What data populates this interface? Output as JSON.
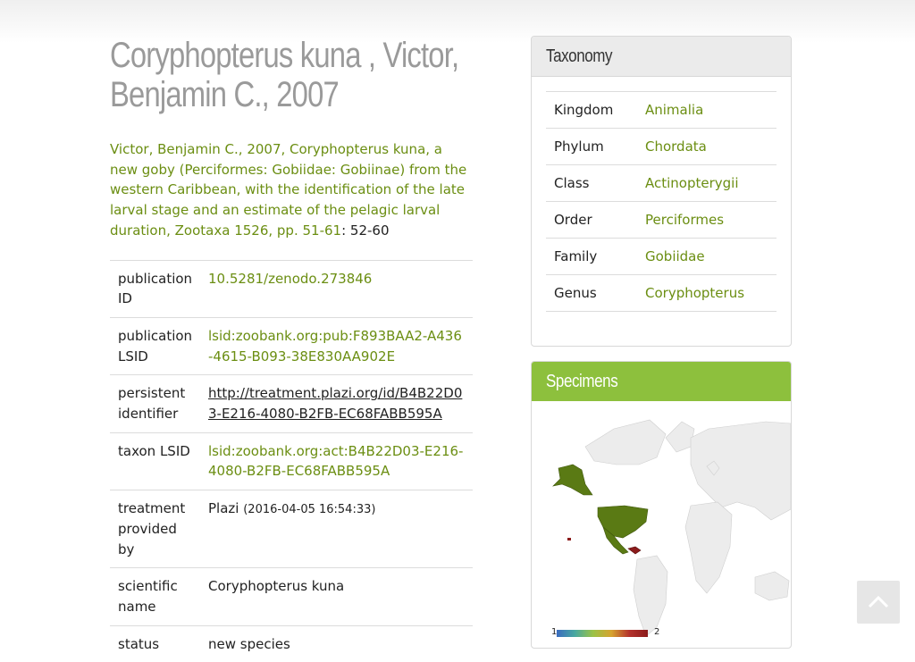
{
  "page": {
    "title": "Coryphopterus kuna , Victor, Benjamin C., 2007"
  },
  "citation": {
    "link_text": "Victor, Benjamin C., 2007, Coryphopterus kuna, a new goby (Perciformes: Gobiidae: Gobiinae) from the western Caribbean, with the identification of the late larval stage and an estimate of the pelagic larval duration, Zootaxa 1526, pp. 51-61",
    "pages": ": 52-60"
  },
  "metadata": [
    {
      "label": "publication ID",
      "value": "10.5281/zenodo.273846"
    },
    {
      "label": "publication LSID",
      "value": "lsid:zoobank.org:pub:F893BAA2-A436-4615-B093-38E830AA902E"
    },
    {
      "label": "persistent identifier",
      "value": "http://treatment.plazi.org/id/B4B22D03-E216-4080-B2FB-EC68FABB595A"
    },
    {
      "label": "taxon LSID",
      "value": "lsid:zoobank.org:act:B4B22D03-E216-4080-B2FB-EC68FABB595A"
    },
    {
      "label": "treatment provided by",
      "value": "Plazi",
      "extra": "(2016-04-05 16:54:33)"
    },
    {
      "label": "scientific name",
      "value": "Coryphopterus kuna"
    },
    {
      "label": "status",
      "value": "new species"
    }
  ],
  "taxonomy": {
    "title": "Taxonomy",
    "rows": [
      {
        "rank": "Kingdom",
        "name": "Animalia"
      },
      {
        "rank": "Phylum",
        "name": "Chordata"
      },
      {
        "rank": "Class",
        "name": "Actinopterygii"
      },
      {
        "rank": "Order",
        "name": "Perciformes"
      },
      {
        "rank": "Family",
        "name": "Gobiidae"
      },
      {
        "rank": "Genus",
        "name": "Coryphopterus"
      }
    ]
  },
  "specimens": {
    "title": "Specimens",
    "legend_min": "1",
    "legend_max": "2"
  },
  "colors": {
    "link_green": "#6b8e12",
    "header_green": "#8dc03d",
    "map_green": "#5a7a14",
    "map_red": "#8b1b1b"
  }
}
